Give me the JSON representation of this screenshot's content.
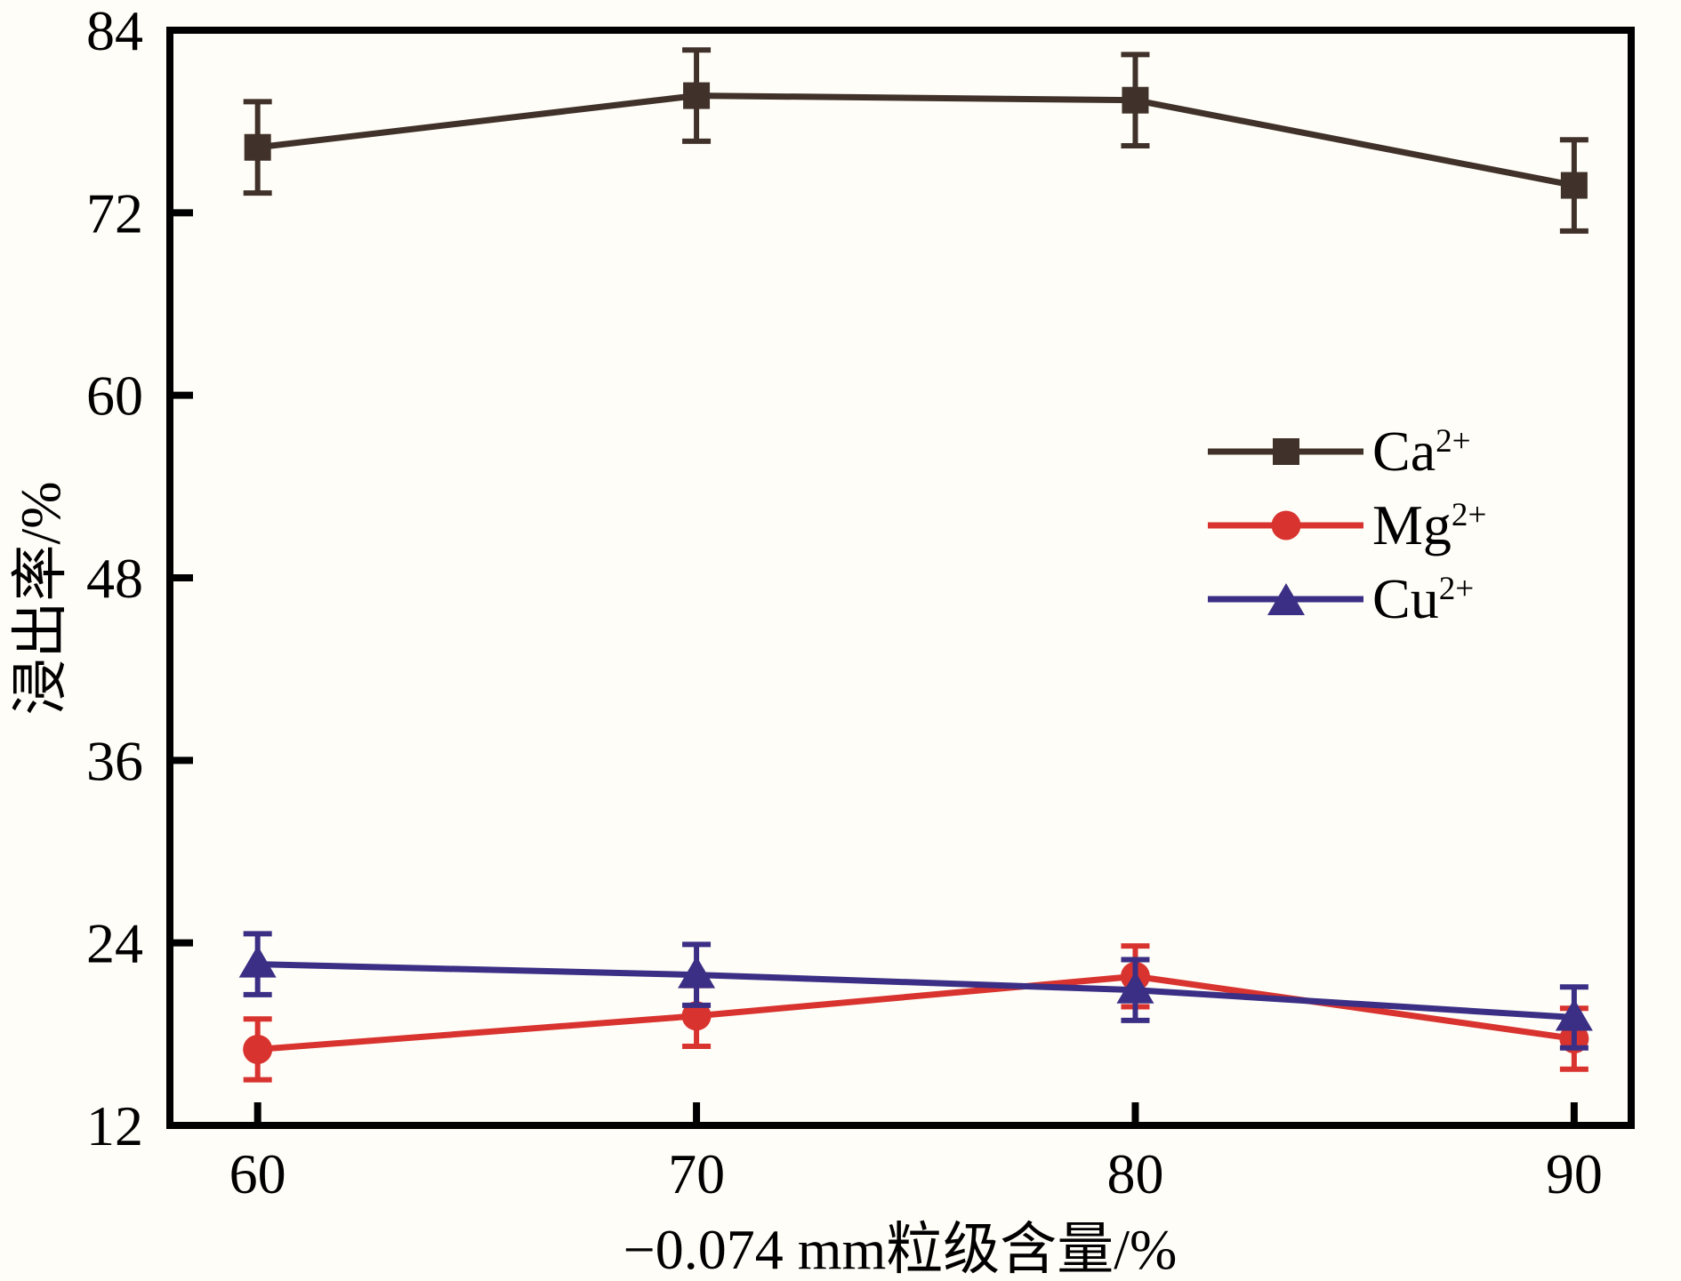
{
  "chart_data": {
    "type": "line",
    "title": "",
    "xlabel": "−0.074 mm粒级含量/%",
    "ylabel": "浸出率/%",
    "x": [
      60,
      70,
      80,
      90
    ],
    "xticks": [
      "60",
      "70",
      "80",
      "90"
    ],
    "yticks": [
      "12",
      "24",
      "36",
      "48",
      "60",
      "72",
      "84"
    ],
    "xlim": [
      58.0,
      91.3
    ],
    "ylim": [
      12,
      84
    ],
    "grid": false,
    "legend_position": "center-right-inside",
    "axis_color": "#000000",
    "background_color": "#fffdf7",
    "series": [
      {
        "name": "Ca2+",
        "label_base": "Ca",
        "label_sup": "2+",
        "marker": "square",
        "color": "#40322A",
        "values": [
          76.3,
          79.7,
          79.4,
          73.8
        ],
        "errors": [
          3.0,
          3.0,
          3.0,
          3.0
        ]
      },
      {
        "name": "Mg2+",
        "label_base": "Mg",
        "label_sup": "2+",
        "marker": "circle",
        "color": "#D8332F",
        "values": [
          17.0,
          19.2,
          21.8,
          17.7
        ],
        "errors": [
          2.0,
          2.0,
          2.0,
          2.0
        ]
      },
      {
        "name": "Cu2+",
        "label_base": "Cu",
        "label_sup": "2+",
        "marker": "triangle",
        "color": "#3A2F85",
        "values": [
          22.6,
          21.9,
          20.9,
          19.1
        ],
        "errors": [
          2.0,
          2.0,
          2.0,
          2.0
        ]
      }
    ]
  }
}
